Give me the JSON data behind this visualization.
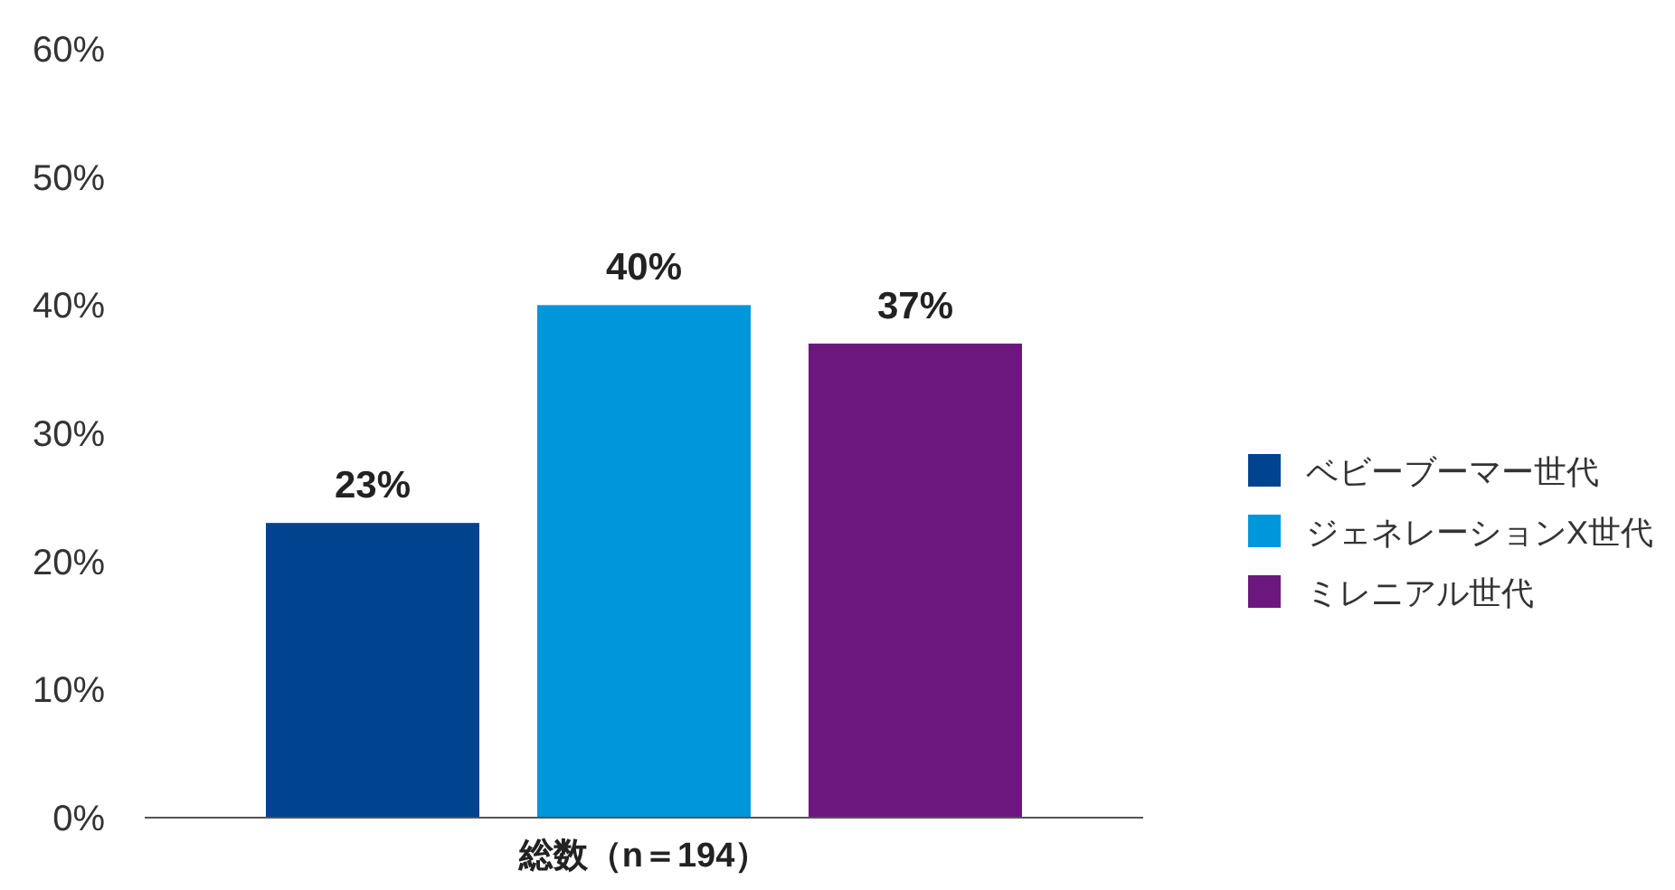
{
  "chart_data": {
    "type": "bar",
    "categories": [
      "総数（n＝194）"
    ],
    "series": [
      {
        "name": "ベビーブーマー世代",
        "color": "#00438f",
        "values": [
          23
        ],
        "value_labels": [
          "23%"
        ]
      },
      {
        "name": "ジェネレーションX世代",
        "color": "#0096db",
        "values": [
          40
        ],
        "value_labels": [
          "40%"
        ]
      },
      {
        "name": "ミレニアル世代",
        "color": "#6b177d",
        "values": [
          37
        ],
        "value_labels": [
          "37%"
        ]
      }
    ],
    "ylim": [
      0,
      60
    ],
    "yticks": [
      {
        "value": 0,
        "label": "0%"
      },
      {
        "value": 10,
        "label": "10%"
      },
      {
        "value": 20,
        "label": "20%"
      },
      {
        "value": 30,
        "label": "30%"
      },
      {
        "value": 40,
        "label": "40%"
      },
      {
        "value": 50,
        "label": "50%"
      },
      {
        "value": 60,
        "label": "60%"
      }
    ],
    "grid": false,
    "legend": "right"
  }
}
